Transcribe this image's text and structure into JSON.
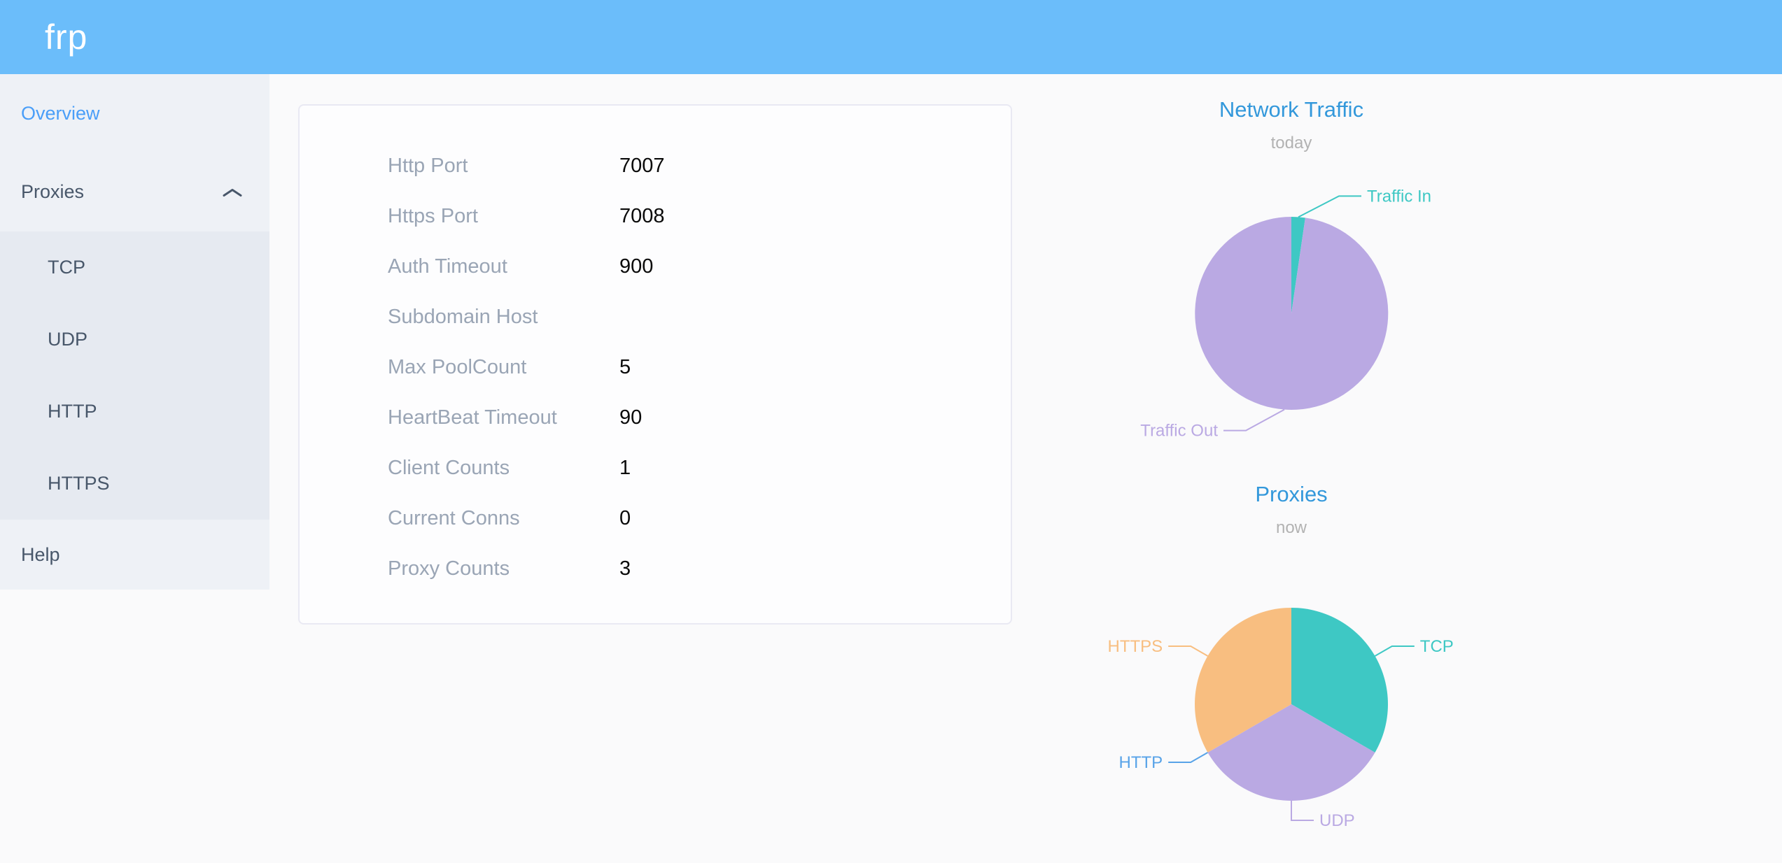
{
  "app": {
    "logo": "frp"
  },
  "sidebar": {
    "items": [
      {
        "label": "Overview",
        "active": true
      },
      {
        "label": "Proxies",
        "expanded": true,
        "children": [
          "TCP",
          "UDP",
          "HTTP",
          "HTTPS"
        ]
      },
      {
        "label": "Help"
      }
    ]
  },
  "overview_card": {
    "rows": [
      {
        "label": "Http Port",
        "value": "7007"
      },
      {
        "label": "Https Port",
        "value": "7008"
      },
      {
        "label": "Auth Timeout",
        "value": "900"
      },
      {
        "label": "Subdomain Host",
        "value": ""
      },
      {
        "label": "Max PoolCount",
        "value": "5"
      },
      {
        "label": "HeartBeat Timeout",
        "value": "90"
      },
      {
        "label": "Client Counts",
        "value": "1"
      },
      {
        "label": "Current Conns",
        "value": "0"
      },
      {
        "label": "Proxy Counts",
        "value": "3"
      }
    ]
  },
  "chart_data": [
    {
      "type": "pie",
      "title": "Network Traffic",
      "subtitle": "today",
      "legend_position": "outside-leader-labels",
      "series": [
        {
          "name": "Traffic In",
          "percent": 2.3,
          "color": "#3ec8c4",
          "label_side": "right",
          "elbow": [
            58,
            -30
          ]
        },
        {
          "name": "Traffic Out",
          "percent": 97.7,
          "color": "#baa9e3",
          "label_side": "left",
          "elbow": [
            -55,
            30
          ]
        }
      ]
    },
    {
      "type": "pie",
      "title": "Proxies",
      "subtitle": "now",
      "legend_position": "outside-leader-labels",
      "series": [
        {
          "name": "TCP",
          "value": 1,
          "color": "#3ec8c4",
          "label_side": "right"
        },
        {
          "name": "UDP",
          "value": 1,
          "color": "#baa9e3",
          "label_side": "right"
        },
        {
          "name": "HTTP",
          "value": 0,
          "color": "#58a3e8",
          "label_side": "left"
        },
        {
          "name": "HTTPS",
          "value": 1,
          "color": "#f8be80",
          "label_side": "left"
        }
      ]
    }
  ],
  "colors": {
    "header_bg": "#6bbdfa",
    "sidebar_bg": "#eef1f6",
    "submenu_bg": "#e6eaf1",
    "sidebar_active": "#4a9ef8",
    "sidebar_text": "#48576a",
    "chart_title": "#3398db",
    "teal": "#3ec8c4",
    "purple": "#baa9e3",
    "orange": "#f8be80",
    "http_blue": "#58a3e8"
  }
}
